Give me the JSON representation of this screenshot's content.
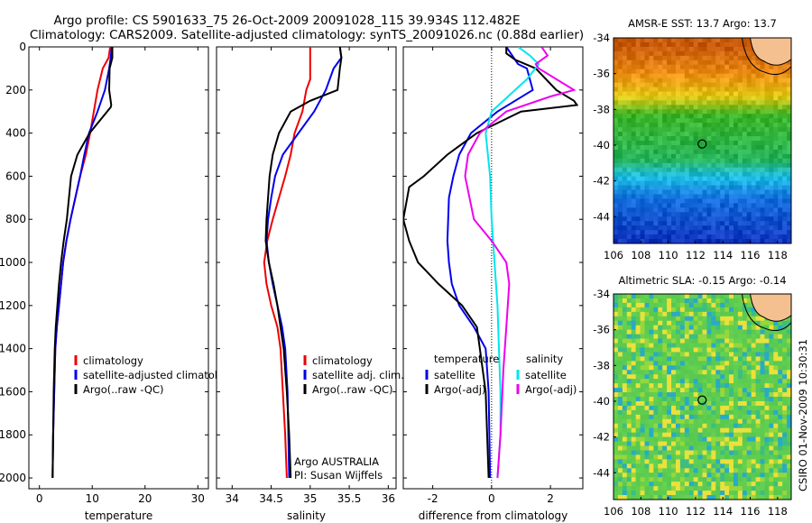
{
  "header": {
    "line1": "Argo profile: CS 5901633_75 26-Oct-2009 20091028_115 39.934S 112.482E",
    "line2": "Climatology: CARS2009. Satellite-adjusted climatology: synTS_20091026.nc (0.88d earlier)"
  },
  "side_label": "CSIRO 01-Nov-2009 10:30:31",
  "credit": {
    "line1": "Argo AUSTRALIA",
    "line2": "PI: Susan Wijffels"
  },
  "colors": {
    "climatology": "#ee0000",
    "satellite": "#0000ee",
    "argo": "#000000",
    "sat_salinity": "#00e5ee",
    "argo_salinity": "#ee00ee"
  },
  "chart_data": [
    {
      "type": "line",
      "xlabel": "temperature",
      "ylim": [
        2050,
        0
      ],
      "xlim": [
        -2,
        32
      ],
      "yticks": [
        0,
        200,
        400,
        600,
        800,
        1000,
        1200,
        1400,
        1600,
        1800,
        2000
      ],
      "xticks": [
        0,
        10,
        20,
        30
      ],
      "legend": [
        "climatology",
        "satellite-adjusted climatology",
        "Argo(..raw -QC)"
      ],
      "series": [
        {
          "name": "climatology",
          "color": "climatology",
          "x": [
            13.4,
            13.1,
            12.0,
            11.0,
            10.3,
            9.6,
            8.8,
            7.7,
            6.8,
            5.9,
            5.1,
            4.5,
            4.1,
            3.7,
            3.3,
            3.0,
            2.8,
            2.7,
            2.6,
            2.5
          ],
          "y": [
            0,
            50,
            100,
            200,
            300,
            400,
            500,
            600,
            700,
            800,
            900,
            1000,
            1100,
            1200,
            1300,
            1400,
            1600,
            1700,
            1800,
            2000
          ]
        },
        {
          "name": "satellite-adjusted climatology",
          "color": "satellite",
          "x": [
            13.7,
            13.5,
            13.2,
            12.4,
            11.0,
            9.4,
            8.5,
            7.7,
            6.8,
            5.9,
            5.1,
            4.5,
            4.1,
            3.7,
            3.3,
            3.0,
            2.8,
            2.6,
            2.5
          ],
          "y": [
            0,
            50,
            100,
            200,
            300,
            400,
            500,
            600,
            700,
            800,
            900,
            1000,
            1100,
            1200,
            1300,
            1400,
            1600,
            1800,
            2000
          ]
        },
        {
          "name": "Argo(..raw -QC)",
          "color": "argo",
          "x": [
            13.8,
            13.8,
            13.3,
            13.2,
            13.6,
            13.5,
            9.5,
            7.2,
            6.0,
            5.2,
            4.6,
            4.1,
            3.7,
            3.4,
            3.1,
            2.9,
            2.7,
            2.6,
            2.5
          ],
          "y": [
            0,
            50,
            100,
            200,
            270,
            280,
            400,
            500,
            600,
            800,
            900,
            1000,
            1100,
            1200,
            1300,
            1400,
            1600,
            1800,
            2000
          ]
        }
      ]
    },
    {
      "type": "line",
      "xlabel": "salinity",
      "ylim": [
        2050,
        0
      ],
      "xlim": [
        33.8,
        36.1
      ],
      "xticks": [
        34,
        34.5,
        35,
        35.5,
        36
      ],
      "legend": [
        "climatology",
        "satellite adj. clim.",
        "Argo(..raw -QC)"
      ],
      "series": [
        {
          "name": "climatology",
          "color": "climatology",
          "x": [
            35.0,
            35.0,
            35.0,
            34.95,
            34.9,
            34.8,
            34.75,
            34.68,
            34.6,
            34.52,
            34.45,
            34.41,
            34.44,
            34.5,
            34.58,
            34.62,
            34.65,
            34.68,
            34.7
          ],
          "y": [
            0,
            100,
            150,
            200,
            300,
            400,
            500,
            600,
            700,
            800,
            900,
            1000,
            1100,
            1200,
            1300,
            1400,
            1600,
            1800,
            2000
          ]
        },
        {
          "name": "satellite adj. clim.",
          "color": "satellite",
          "x": [
            35.38,
            35.4,
            35.3,
            35.2,
            35.05,
            34.85,
            34.65,
            34.55,
            34.5,
            34.46,
            34.44,
            34.47,
            34.52,
            34.58,
            34.64,
            34.68,
            34.71,
            34.73
          ],
          "y": [
            0,
            50,
            100,
            200,
            300,
            400,
            500,
            600,
            700,
            800,
            900,
            1000,
            1100,
            1200,
            1300,
            1400,
            1600,
            2000
          ]
        },
        {
          "name": "Argo(..raw -QC)",
          "color": "argo",
          "x": [
            35.38,
            35.4,
            35.38,
            35.35,
            35.0,
            34.75,
            34.6,
            34.52,
            34.48,
            34.44,
            34.43,
            34.47,
            34.53,
            34.58,
            34.62,
            34.66,
            34.7,
            34.73,
            34.75
          ],
          "y": [
            0,
            50,
            100,
            200,
            250,
            300,
            400,
            500,
            600,
            800,
            900,
            1000,
            1100,
            1200,
            1300,
            1400,
            1600,
            1800,
            2000
          ]
        }
      ]
    },
    {
      "type": "line",
      "xlabel": "difference from climatology",
      "ylim": [
        2050,
        0
      ],
      "xlim": [
        -3,
        3.1
      ],
      "xticks": [
        -2,
        0,
        2
      ],
      "legend_left_title": "temperature",
      "legend_right_title": "salinity",
      "legend_left": [
        "satellite",
        "Argo(-adj)"
      ],
      "legend_right": [
        "satellite",
        "Argo(-adj)"
      ],
      "series": [
        {
          "name": "temperature satellite",
          "color": "satellite",
          "x": [
            0.5,
            0.65,
            0.9,
            1.2,
            1.4,
            0.2,
            -0.7,
            -1.1,
            -1.3,
            -1.45,
            -1.5,
            -1.45,
            -1.35,
            -1.1,
            -0.6,
            -0.2,
            -0.1,
            -0.05
          ],
          "y": [
            0,
            30,
            80,
            100,
            200,
            300,
            400,
            500,
            600,
            700,
            900,
            1000,
            1100,
            1200,
            1300,
            1400,
            1600,
            2000
          ]
        },
        {
          "name": "temperature Argo(-adj)",
          "color": "argo",
          "x": [
            0.5,
            0.5,
            0.8,
            1.5,
            2.2,
            2.8,
            2.9,
            1.0,
            -0.5,
            -1.5,
            -2.3,
            -2.8,
            -3.0,
            -2.8,
            -2.5,
            -1.8,
            -1.0,
            -0.5,
            -0.2,
            -0.1
          ],
          "y": [
            0,
            30,
            60,
            100,
            200,
            250,
            270,
            300,
            400,
            500,
            600,
            650,
            800,
            900,
            1000,
            1100,
            1200,
            1300,
            1600,
            2000
          ]
        },
        {
          "name": "salinity satellite",
          "color": "sat_salinity",
          "x": [
            0.9,
            1.3,
            1.6,
            1.2,
            0.8,
            0.0,
            -0.2,
            -0.05,
            0.0,
            0.1,
            0.2,
            0.25,
            0.3,
            0.3,
            0.2
          ],
          "y": [
            0,
            40,
            80,
            150,
            200,
            300,
            400,
            600,
            800,
            1000,
            1200,
            1400,
            1600,
            1800,
            2000
          ]
        },
        {
          "name": "salinity Argo(-adj)",
          "color": "argo_salinity",
          "x": [
            1.7,
            1.9,
            1.5,
            1.6,
            2.8,
            2.0,
            0.5,
            -0.4,
            -0.8,
            -0.9,
            -0.6,
            0.0,
            0.5,
            0.6,
            0.5,
            0.4,
            0.3,
            0.2
          ],
          "y": [
            0,
            40,
            80,
            100,
            200,
            230,
            300,
            400,
            500,
            600,
            800,
            900,
            1000,
            1100,
            1300,
            1500,
            1800,
            2000
          ]
        }
      ]
    },
    {
      "type": "heatmap",
      "title": "AMSR-E SST: 13.7 Argo: 13.7",
      "xlim": [
        106,
        119
      ],
      "ylim": [
        -45.5,
        -34
      ],
      "xticks": [
        106,
        108,
        110,
        112,
        114,
        116,
        118
      ],
      "yticks": [
        -34,
        -36,
        -38,
        -40,
        -42,
        -44
      ],
      "marker": {
        "lon": 112.482,
        "lat": -39.934
      }
    },
    {
      "type": "heatmap",
      "title": "Altimetric SLA: -0.15 Argo: -0.14",
      "xlim": [
        106,
        119
      ],
      "ylim": [
        -45.5,
        -34
      ],
      "xticks": [
        106,
        108,
        110,
        112,
        114,
        116,
        118
      ],
      "yticks": [
        -34,
        -36,
        -38,
        -40,
        -42,
        -44
      ],
      "marker": {
        "lon": 112.482,
        "lat": -39.934
      }
    }
  ]
}
